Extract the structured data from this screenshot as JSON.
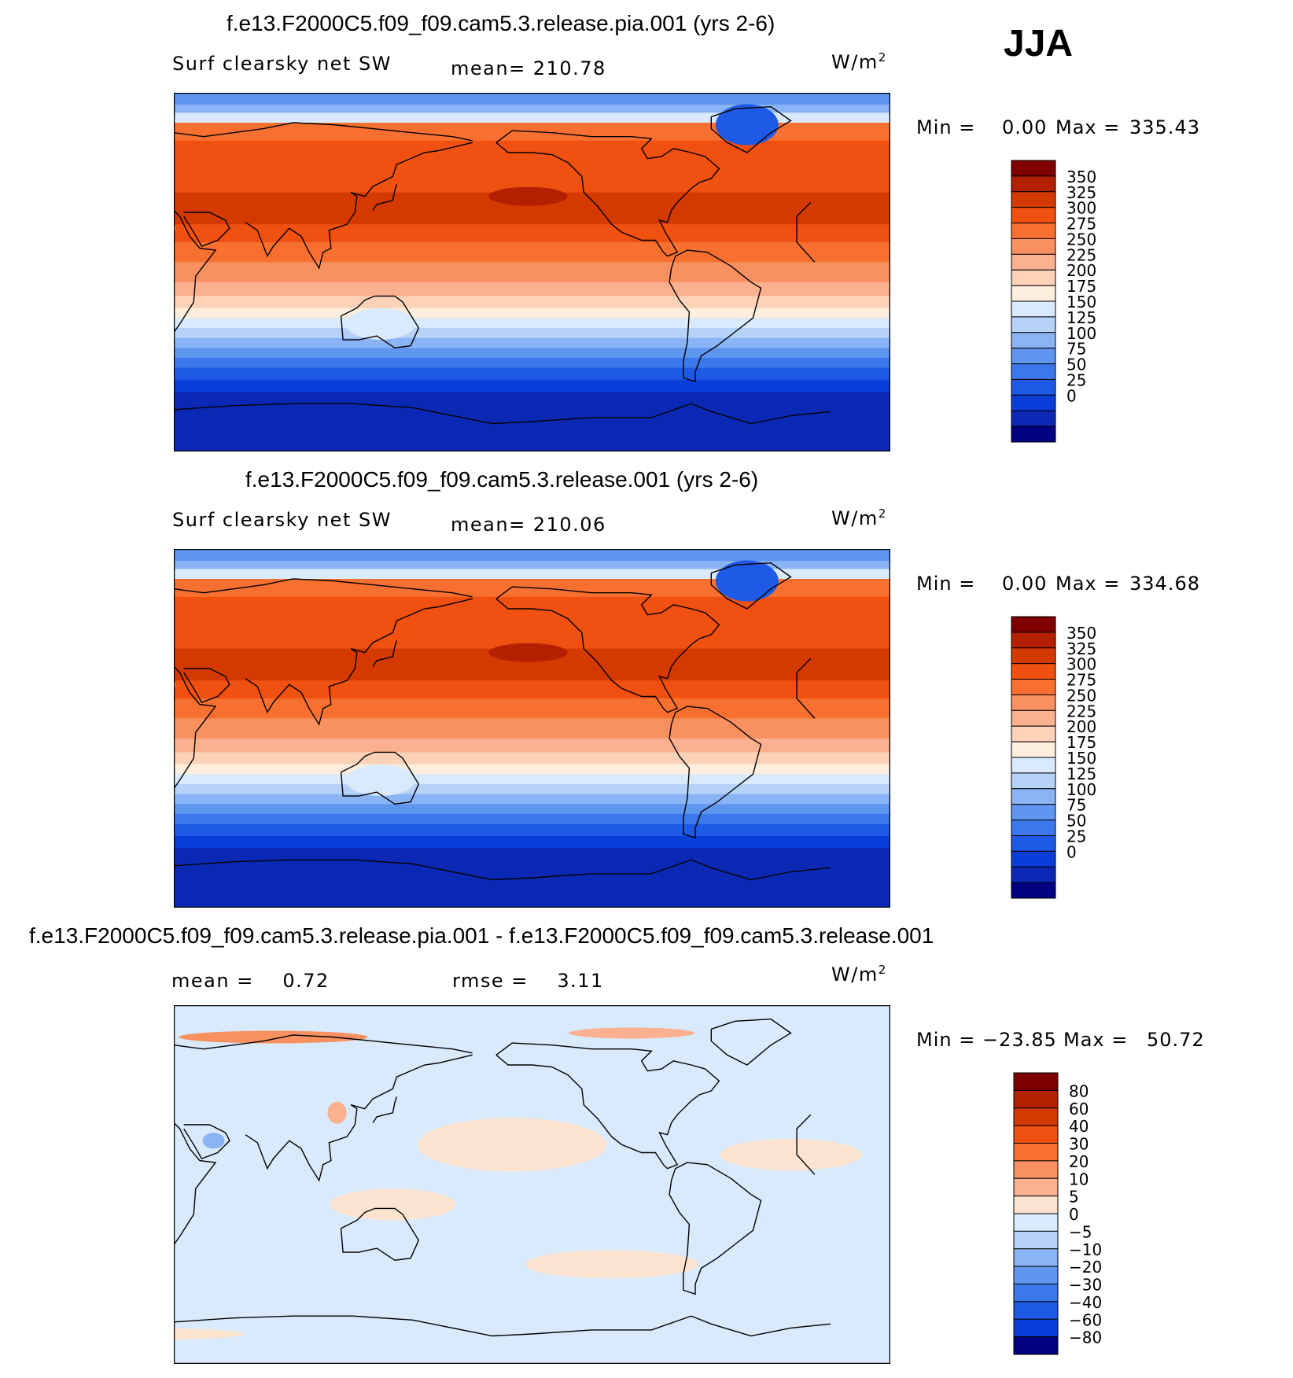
{
  "season": "JJA",
  "panels": [
    {
      "id": "pia",
      "title": "f.e13.F2000C5.f09_f09.cam5.3.release.pia.001 (yrs 2-6)",
      "left_label": "Surf clearsky net SW",
      "center_label": "mean= 210.78",
      "units_base": "W/m",
      "units_exp": "2",
      "min_label": "Min =",
      "min_value": "0.00",
      "max_label": "Max =",
      "max_value": "335.43",
      "colorbar": {
        "labels": [
          "350",
          "325",
          "300",
          "275",
          "250",
          "225",
          "200",
          "175",
          "150",
          "125",
          "100",
          "75",
          "50",
          "25",
          "0"
        ],
        "colors": [
          "#800000",
          "#b22000",
          "#d43a00",
          "#f05010",
          "#f87030",
          "#f89060",
          "#fbb090",
          "#fcd2b8",
          "#fdeedd",
          "#d8eafb",
          "#b6d2f8",
          "#8ab4f5",
          "#5e96f0",
          "#3c78ec",
          "#1e5ae6",
          "#0a3ed8",
          "#0a28b4",
          "#000080"
        ]
      }
    },
    {
      "id": "control",
      "title": "f.e13.F2000C5.f09_f09.cam5.3.release.001 (yrs 2-6)",
      "left_label": "Surf clearsky net SW",
      "center_label": "mean= 210.06",
      "units_base": "W/m",
      "units_exp": "2",
      "min_label": "Min =",
      "min_value": "0.00",
      "max_label": "Max =",
      "max_value": "334.68",
      "colorbar": {
        "labels": [
          "350",
          "325",
          "300",
          "275",
          "250",
          "225",
          "200",
          "175",
          "150",
          "125",
          "100",
          "75",
          "50",
          "25",
          "0"
        ],
        "colors": [
          "#800000",
          "#b22000",
          "#d43a00",
          "#f05010",
          "#f87030",
          "#f89060",
          "#fbb090",
          "#fcd2b8",
          "#fdeedd",
          "#d8eafb",
          "#b6d2f8",
          "#8ab4f5",
          "#5e96f0",
          "#3c78ec",
          "#1e5ae6",
          "#0a3ed8",
          "#0a28b4",
          "#000080"
        ]
      }
    },
    {
      "id": "diff",
      "title": "f.e13.F2000C5.f09_f09.cam5.3.release.pia.001 - f.e13.F2000C5.f09_f09.cam5.3.release.001",
      "left_label": "mean =    0.72",
      "center_label": "rmse =    3.11",
      "units_base": "W/m",
      "units_exp": "2",
      "min_label": "Min =",
      "min_value": "−23.85",
      "max_label": "Max =",
      "max_value": "50.72",
      "colorbar": {
        "labels": [
          "80",
          "60",
          "40",
          "30",
          "20",
          "10",
          "5",
          "0",
          "−5",
          "−10",
          "−20",
          "−30",
          "−40",
          "−60",
          "−80"
        ],
        "colors": [
          "#800000",
          "#b22000",
          "#d43a00",
          "#f05010",
          "#f87030",
          "#f89060",
          "#fbb090",
          "#fde4d0",
          "#d8eafb",
          "#b6d2f8",
          "#8ab4f5",
          "#5e96f0",
          "#3c78ec",
          "#1e5ae6",
          "#0a3ed8",
          "#000080"
        ]
      }
    }
  ]
}
